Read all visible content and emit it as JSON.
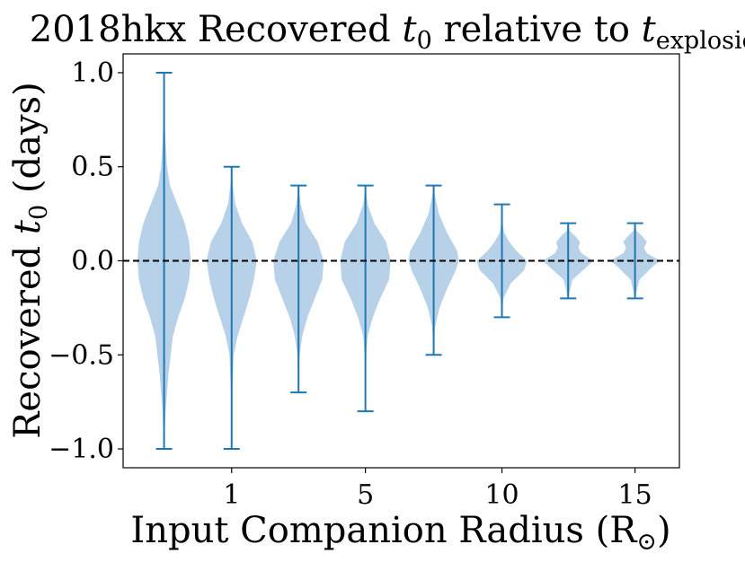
{
  "chart_data": {
    "type": "violin",
    "title": {
      "prefix": "2018hkx Recovered ",
      "var1": "t",
      "var1_sub": "0",
      "middle": " relative to ",
      "var2": "t",
      "var2_sub": "explosion"
    },
    "xlabel": {
      "text": "Input Companion Radius (R",
      "sub": "⊙",
      "suffix": ")"
    },
    "ylabel": {
      "prefix": "Recovered ",
      "var": "t",
      "sub": "0",
      "suffix": "  (days)"
    },
    "ylim": [
      -1.1,
      1.1
    ],
    "xlim": [
      0.0,
      8.15
    ],
    "yticks": [
      {
        "value": 1.0,
        "label": "1.0"
      },
      {
        "value": 0.5,
        "label": "0.5"
      },
      {
        "value": 0.0,
        "label": "0.0"
      },
      {
        "value": -0.5,
        "label": "−0.5"
      },
      {
        "value": -1.0,
        "label": "−1.0"
      }
    ],
    "xticks": [
      {
        "value": 1.59,
        "label": "1"
      },
      {
        "value": 3.55,
        "label": "5"
      },
      {
        "value": 5.55,
        "label": "10"
      },
      {
        "value": 7.5,
        "label": "15"
      }
    ],
    "reference_line": {
      "y": 0.0,
      "style": "dashed",
      "color": "#000000"
    },
    "colors": {
      "body": "#9fc3e0",
      "stroke": "#1f77b4"
    },
    "violins": [
      {
        "position": 0.6,
        "min": -1.0,
        "max": 1.0,
        "density": [
          [
            -1.0,
            0.0
          ],
          [
            -0.8,
            0.01
          ],
          [
            -0.6,
            0.03
          ],
          [
            -0.4,
            0.06
          ],
          [
            -0.3,
            0.095
          ],
          [
            -0.2,
            0.14
          ],
          [
            -0.1,
            0.17
          ],
          [
            0.0,
            0.18
          ],
          [
            0.1,
            0.17
          ],
          [
            0.2,
            0.14
          ],
          [
            0.3,
            0.09
          ],
          [
            0.4,
            0.04
          ],
          [
            0.5,
            0.02
          ],
          [
            0.6,
            0.012
          ],
          [
            0.7,
            0.006
          ],
          [
            0.8,
            0.002
          ],
          [
            1.0,
            0.0
          ]
        ]
      },
      {
        "position": 1.59,
        "min": -1.0,
        "max": 0.5,
        "density": [
          [
            -1.0,
            0.0
          ],
          [
            -0.7,
            0.004
          ],
          [
            -0.5,
            0.015
          ],
          [
            -0.4,
            0.04
          ],
          [
            -0.3,
            0.08
          ],
          [
            -0.2,
            0.12
          ],
          [
            -0.1,
            0.15
          ],
          [
            0.0,
            0.17
          ],
          [
            0.1,
            0.14
          ],
          [
            0.2,
            0.07
          ],
          [
            0.3,
            0.025
          ],
          [
            0.4,
            0.008
          ],
          [
            0.5,
            0.0
          ]
        ]
      },
      {
        "position": 2.57,
        "min": -0.7,
        "max": 0.4,
        "density": [
          [
            -0.7,
            0.0
          ],
          [
            -0.5,
            0.008
          ],
          [
            -0.4,
            0.025
          ],
          [
            -0.3,
            0.06
          ],
          [
            -0.2,
            0.11
          ],
          [
            -0.1,
            0.16
          ],
          [
            0.0,
            0.17
          ],
          [
            0.1,
            0.13
          ],
          [
            0.2,
            0.05
          ],
          [
            0.3,
            0.015
          ],
          [
            0.4,
            0.0
          ]
        ]
      },
      {
        "position": 3.55,
        "min": -0.8,
        "max": 0.4,
        "density": [
          [
            -0.8,
            0.0
          ],
          [
            -0.5,
            0.005
          ],
          [
            -0.4,
            0.015
          ],
          [
            -0.3,
            0.05
          ],
          [
            -0.2,
            0.1
          ],
          [
            -0.1,
            0.16
          ],
          [
            0.0,
            0.17
          ],
          [
            0.1,
            0.14
          ],
          [
            0.2,
            0.06
          ],
          [
            0.3,
            0.015
          ],
          [
            0.4,
            0.0
          ]
        ]
      },
      {
        "position": 4.55,
        "min": -0.5,
        "max": 0.4,
        "density": [
          [
            -0.5,
            0.0
          ],
          [
            -0.35,
            0.01
          ],
          [
            -0.25,
            0.04
          ],
          [
            -0.15,
            0.09
          ],
          [
            -0.05,
            0.15
          ],
          [
            0.0,
            0.17
          ],
          [
            0.05,
            0.16
          ],
          [
            0.15,
            0.09
          ],
          [
            0.25,
            0.035
          ],
          [
            0.35,
            0.008
          ],
          [
            0.4,
            0.0
          ]
        ]
      },
      {
        "position": 5.55,
        "min": -0.3,
        "max": 0.3,
        "density": [
          [
            -0.3,
            0.0
          ],
          [
            -0.2,
            0.01
          ],
          [
            -0.12,
            0.06
          ],
          [
            -0.05,
            0.15
          ],
          [
            0.0,
            0.17
          ],
          [
            0.05,
            0.1
          ],
          [
            0.1,
            0.05
          ],
          [
            0.15,
            0.015
          ],
          [
            0.2,
            0.005
          ],
          [
            0.3,
            0.0
          ]
        ]
      },
      {
        "position": 6.52,
        "min": -0.2,
        "max": 0.2,
        "density": [
          [
            -0.2,
            0.0
          ],
          [
            -0.1,
            0.03
          ],
          [
            -0.03,
            0.13
          ],
          [
            0.0,
            0.17
          ],
          [
            0.04,
            0.09
          ],
          [
            0.07,
            0.07
          ],
          [
            0.1,
            0.08
          ],
          [
            0.13,
            0.05
          ],
          [
            0.16,
            0.01
          ],
          [
            0.2,
            0.0
          ]
        ]
      },
      {
        "position": 7.5,
        "min": -0.2,
        "max": 0.2,
        "density": [
          [
            -0.2,
            0.0
          ],
          [
            -0.1,
            0.03
          ],
          [
            -0.03,
            0.12
          ],
          [
            0.0,
            0.17
          ],
          [
            0.04,
            0.08
          ],
          [
            0.07,
            0.06
          ],
          [
            0.1,
            0.08
          ],
          [
            0.13,
            0.05
          ],
          [
            0.16,
            0.01
          ],
          [
            0.2,
            0.0
          ]
        ]
      }
    ]
  }
}
